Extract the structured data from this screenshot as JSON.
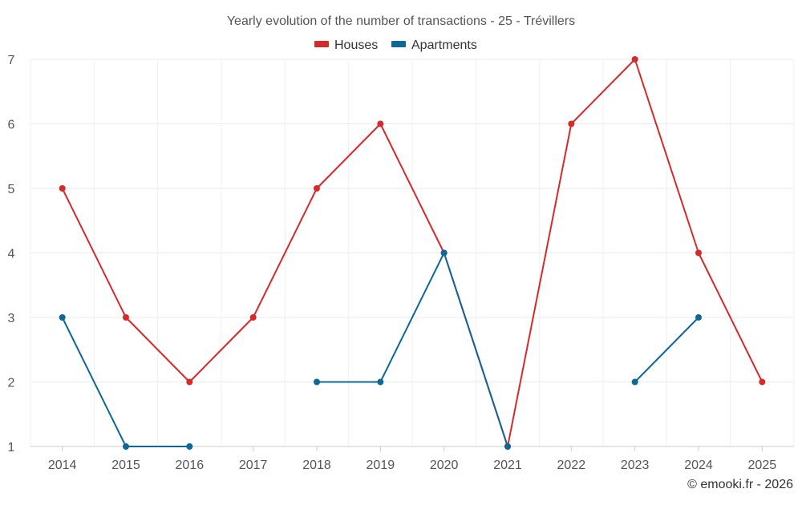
{
  "chart_data": {
    "type": "line",
    "title": "Yearly evolution of the number of transactions - 25 - Trévillers",
    "categories": [
      "2014",
      "2015",
      "2016",
      "2017",
      "2018",
      "2019",
      "2020",
      "2021",
      "2022",
      "2023",
      "2024",
      "2025"
    ],
    "series": [
      {
        "name": "Houses",
        "color": "#d42a2a",
        "values": [
          5,
          3,
          2,
          3,
          5,
          6,
          4,
          1,
          6,
          7,
          4,
          2
        ]
      },
      {
        "name": "Apartments",
        "color": "#0d6797",
        "values": [
          3,
          1,
          1,
          null,
          2,
          2,
          4,
          1,
          null,
          2,
          3,
          null
        ]
      }
    ],
    "ylim": [
      1,
      7
    ],
    "yticks": [
      "1",
      "2",
      "3",
      "4",
      "5",
      "6",
      "7"
    ],
    "grid": true,
    "legend": "top-center",
    "xlabel": "",
    "ylabel": ""
  },
  "credit": "© emooki.fr - 2026"
}
